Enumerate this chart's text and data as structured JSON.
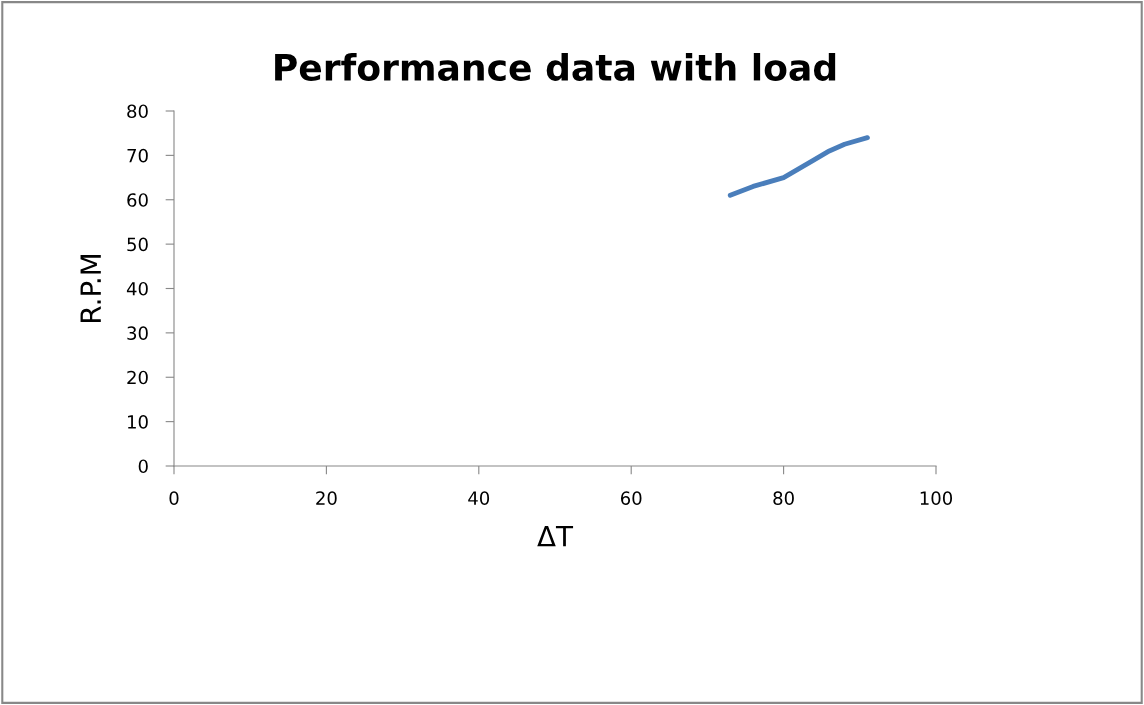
{
  "chart_data": {
    "type": "line",
    "title": "Performance data with load",
    "xlabel": "ΔT",
    "ylabel": "R.P.M",
    "x": [
      73,
      76,
      80,
      84,
      86,
      88,
      91
    ],
    "series": [
      {
        "color": "#4a7ebb",
        "values": [
          61,
          63,
          65,
          69,
          71,
          72.5,
          74
        ]
      }
    ],
    "xlim": [
      0,
      100
    ],
    "xticks": [
      0,
      20,
      40,
      60,
      80,
      100
    ],
    "ylim": [
      0,
      80
    ],
    "yticks": [
      0,
      10,
      20,
      30,
      40,
      50,
      60,
      70,
      80
    ],
    "grid": false,
    "legend": false,
    "marker": "none",
    "line_style": "solid"
  }
}
